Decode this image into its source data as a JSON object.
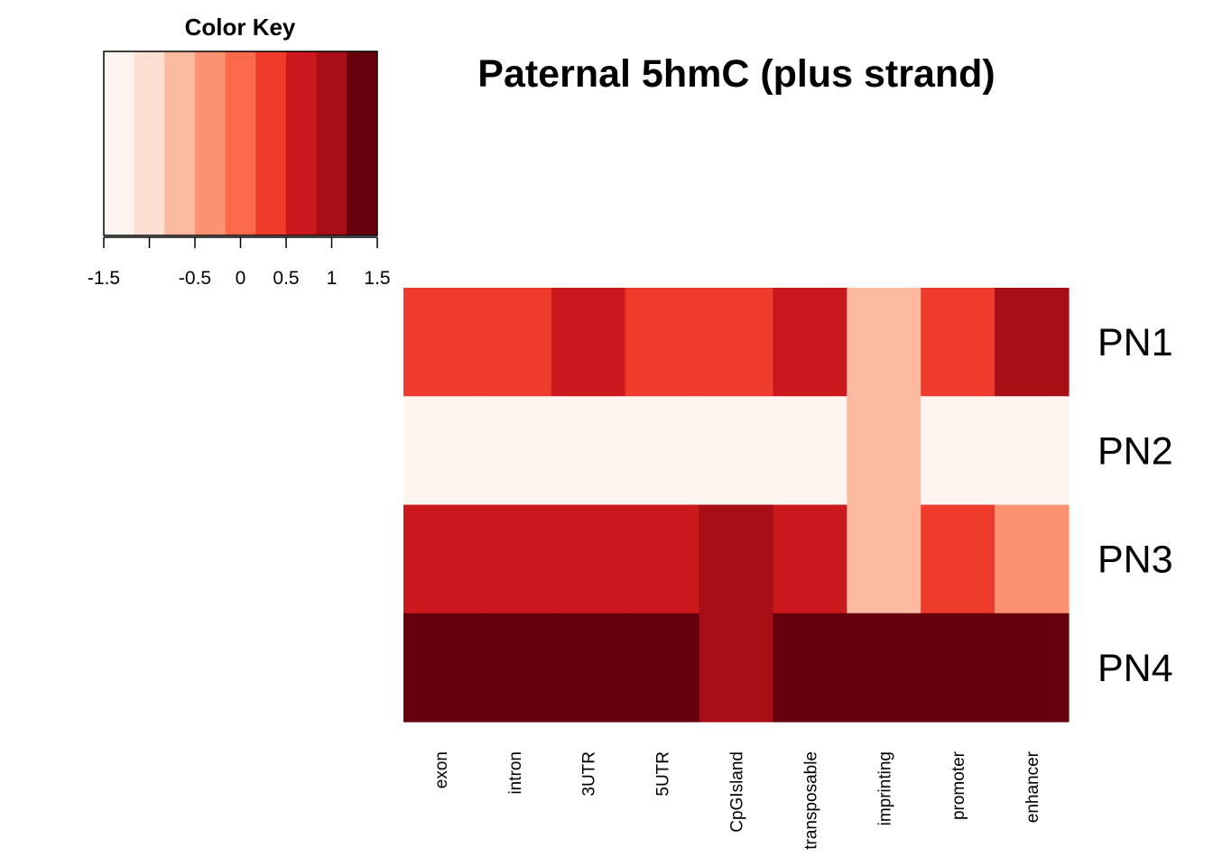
{
  "chart_data": {
    "type": "heatmap",
    "title": "Paternal 5hmC (plus strand)",
    "color_key": {
      "title": "Color Key",
      "range": [
        -1.5,
        1.5
      ],
      "colors": [
        "#FFF5F0",
        "#FEE0D2",
        "#FCBBA1",
        "#FC9272",
        "#FB6A4A",
        "#EF3B2C",
        "#CB181D",
        "#A50F15",
        "#67000D"
      ],
      "ticks": [
        -1.5,
        -1.0,
        -0.5,
        0,
        0.5,
        1.0,
        1.5
      ],
      "tick_labels": [
        "-1.5",
        "",
        "-0.5",
        "0",
        "0.5",
        "1",
        "1.5"
      ]
    },
    "rows": [
      "PN1",
      "PN2",
      "PN3",
      "PN4"
    ],
    "columns": [
      "exon",
      "intron",
      "3UTR",
      "5UTR",
      "CpGIsland",
      "transposable",
      "imprinting",
      "promoter",
      "enhancer"
    ],
    "values": [
      [
        0.4,
        0.4,
        0.7,
        0.4,
        0.4,
        0.7,
        -0.7,
        0.4,
        1.0
      ],
      [
        -1.5,
        -1.5,
        -1.5,
        -1.5,
        -1.5,
        -1.5,
        -0.7,
        -1.5,
        -1.5
      ],
      [
        0.7,
        0.7,
        0.7,
        0.7,
        1.0,
        0.7,
        -0.7,
        0.4,
        -0.3
      ],
      [
        1.4,
        1.2,
        1.2,
        1.2,
        1.0,
        1.2,
        1.4,
        1.2,
        1.2
      ]
    ]
  }
}
